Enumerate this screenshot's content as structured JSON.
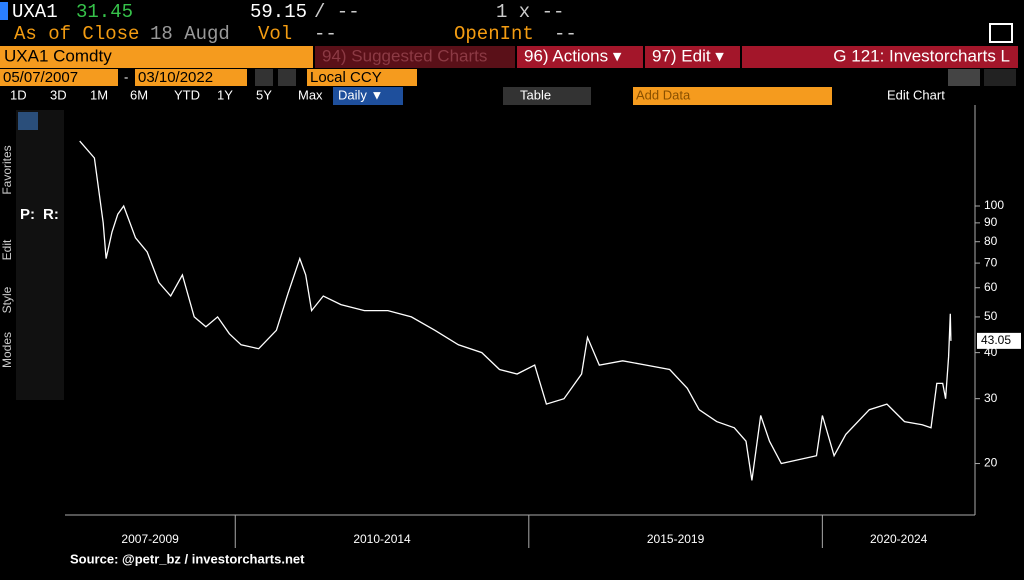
{
  "header": {
    "ticker": "UXA1",
    "price": "31.45",
    "high": "59.15",
    "high_sep": "/ --",
    "multiplier": "1 x --",
    "as_of": "As of Close",
    "date": "18 Augd",
    "vol_label": "Vol",
    "vol": "--",
    "openint_label": "OpenInt",
    "openint": "--"
  },
  "toolbar": {
    "security": "UXA1 Comdty",
    "suggested": "94) Suggested Charts",
    "actions": "96) Actions ▾",
    "edit": "97) Edit ▾",
    "chart_name": "G 121: Investorcharts L",
    "start_date": "05/07/2007",
    "date_sep": "-",
    "end_date": "03/10/2022",
    "currency": "Local CCY",
    "periods": [
      "1D",
      "3D",
      "1M",
      "6M",
      "YTD",
      "1Y",
      "5Y",
      "Max"
    ],
    "frequency": "Daily ▼",
    "table": "Table",
    "add_data": "Add Data",
    "edit_chart": "Edit Chart"
  },
  "side_tabs": [
    "Favorites",
    "Edit",
    "Style",
    "Modes"
  ],
  "tool_labels": [
    "P:",
    "R:"
  ],
  "chart_data": {
    "type": "line",
    "color": "#ffffff",
    "log_scale": true,
    "x": [
      2007.35,
      2007.6,
      2007.75,
      2007.8,
      2007.9,
      2008.0,
      2008.1,
      2008.3,
      2008.5,
      2008.7,
      2008.9,
      2009.1,
      2009.3,
      2009.5,
      2009.7,
      2009.9,
      2010.1,
      2010.4,
      2010.7,
      2010.9,
      2011.1,
      2011.2,
      2011.3,
      2011.5,
      2011.8,
      2012.2,
      2012.6,
      2013.0,
      2013.4,
      2013.8,
      2014.2,
      2014.5,
      2014.8,
      2015.1,
      2015.3,
      2015.6,
      2015.9,
      2016.0,
      2016.2,
      2016.6,
      2017.0,
      2017.4,
      2017.7,
      2017.9,
      2018.2,
      2018.5,
      2018.7,
      2018.8,
      2018.95,
      2019.1,
      2019.3,
      2019.6,
      2019.9,
      2020.0,
      2020.2,
      2020.4,
      2020.8,
      2021.1,
      2021.4,
      2021.7,
      2021.85,
      2021.95,
      2022.05,
      2022.1,
      2022.15,
      2022.18,
      2022.19
    ],
    "values": [
      150,
      135,
      90,
      72,
      85,
      95,
      100,
      82,
      75,
      62,
      57,
      65,
      50,
      47,
      50,
      45,
      42,
      41,
      46,
      58,
      72,
      65,
      52,
      57,
      54,
      52,
      52,
      50,
      46,
      42,
      40,
      36,
      35,
      37,
      29,
      30,
      35,
      44,
      37,
      38,
      37,
      36,
      32,
      28,
      26,
      25,
      23,
      18,
      27,
      23,
      20,
      20.5,
      21,
      27,
      21,
      24,
      28,
      29,
      26,
      25.5,
      25,
      33,
      33,
      30,
      39,
      51,
      43.05
    ],
    "xlim": [
      2007.1,
      2022.6
    ],
    "ylim": [
      14.5,
      188
    ],
    "yticks": [
      20,
      30,
      40,
      50,
      60,
      70,
      80,
      90,
      100
    ],
    "x_periods": [
      {
        "label": "2007-2009",
        "start": 2007,
        "end": 2010
      },
      {
        "label": "2010-2014",
        "start": 2010,
        "end": 2015
      },
      {
        "label": "2015-2019",
        "start": 2015,
        "end": 2020
      },
      {
        "label": "2020-2024",
        "start": 2020,
        "end": 2025
      }
    ]
  },
  "source": "Source: @petr_bz / investorcharts.net"
}
